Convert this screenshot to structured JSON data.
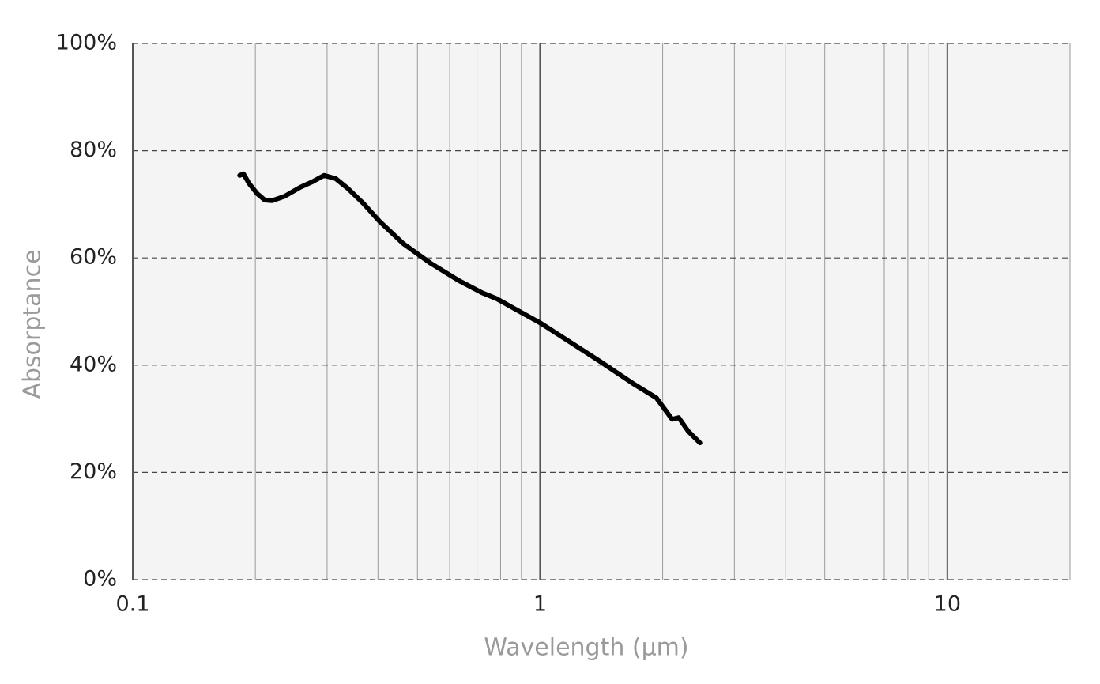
{
  "chart_data": {
    "type": "line",
    "x_label": "Wavelength (µm)",
    "y_label": "Absorptance",
    "x_scale": "log",
    "xlim": [
      0.1,
      20
    ],
    "ylim": [
      0,
      100
    ],
    "xticks": [
      0.1,
      1,
      10
    ],
    "xminorticks": [
      0.2,
      0.3,
      0.4,
      0.5,
      0.6,
      0.7,
      0.8,
      0.9,
      2,
      3,
      4,
      5,
      6,
      7,
      8,
      9,
      20
    ],
    "yticks": [
      {
        "value": 0,
        "label": "0%"
      },
      {
        "value": 20,
        "label": "20%"
      },
      {
        "value": 40,
        "label": "40%"
      },
      {
        "value": 60,
        "label": "60%"
      },
      {
        "value": 80,
        "label": "80%"
      },
      {
        "value": 100,
        "label": "100%"
      }
    ],
    "grid": true,
    "background": "#f4f4f4",
    "series": [
      {
        "color": "#000000",
        "x": [
          0.183,
          0.187,
          0.193,
          0.202,
          0.211,
          0.22,
          0.236,
          0.258,
          0.276,
          0.295,
          0.315,
          0.337,
          0.369,
          0.404,
          0.461,
          0.539,
          0.631,
          0.721,
          0.782,
          0.844,
          1.0,
          1.18,
          1.41,
          1.69,
          1.93,
          2.11,
          2.19,
          2.31,
          2.47
        ],
        "values": [
          75.4,
          75.7,
          73.9,
          72,
          70.8,
          70.7,
          71.5,
          73.2,
          74.2,
          75.4,
          74.8,
          73,
          70.1,
          66.8,
          62.7,
          59,
          55.8,
          53.5,
          52.4,
          51,
          47.9,
          44.4,
          40.6,
          36.6,
          33.9,
          29.9,
          30.2,
          27.7,
          25.5
        ]
      }
    ]
  }
}
